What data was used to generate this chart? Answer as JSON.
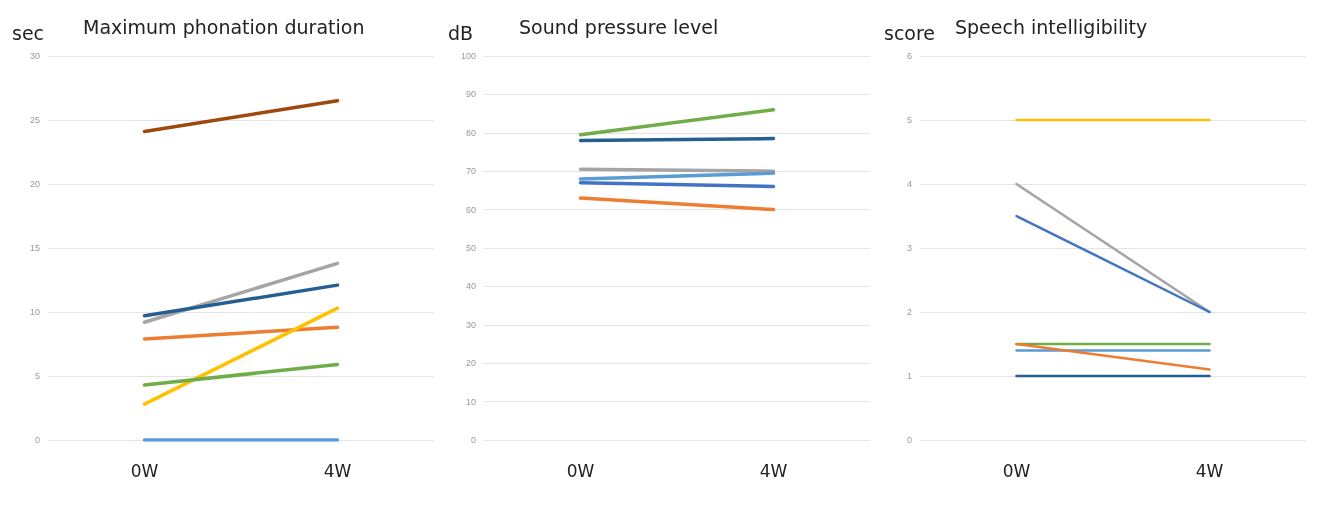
{
  "chart_data": [
    {
      "type": "line",
      "title": "Maximum phonation duration",
      "ylabel": "sec",
      "categories": [
        "0W",
        "4W"
      ],
      "ylim": [
        0,
        30
      ],
      "yticks": [
        0,
        5,
        10,
        15,
        20,
        25,
        30
      ],
      "grid": "y",
      "marker": "none",
      "series": [
        {
          "color": "#9e480e",
          "values": [
            24.1,
            26.5
          ]
        },
        {
          "color": "#a5a5a5",
          "values": [
            9.2,
            13.8
          ]
        },
        {
          "color": "#255e91",
          "values": [
            9.7,
            12.1
          ]
        },
        {
          "color": "#ed7d31",
          "values": [
            7.9,
            8.8
          ]
        },
        {
          "color": "#ffc000",
          "values": [
            2.8,
            10.3
          ]
        },
        {
          "color": "#70ad47",
          "values": [
            4.3,
            5.9
          ]
        },
        {
          "color": "#5b9bd5",
          "values": [
            0,
            0
          ]
        }
      ]
    },
    {
      "type": "line",
      "title": "Sound pressure level",
      "ylabel": "dB",
      "categories": [
        "0W",
        "4W"
      ],
      "ylim": [
        0,
        100
      ],
      "yticks": [
        0,
        10,
        20,
        30,
        40,
        50,
        60,
        70,
        80,
        90,
        100
      ],
      "grid": "y",
      "marker": "none",
      "series": [
        {
          "color": "#70ad47",
          "values": [
            79.5,
            86
          ]
        },
        {
          "color": "#255e91",
          "values": [
            78,
            78.5
          ]
        },
        {
          "color": "#a5a5a5",
          "values": [
            70.5,
            70
          ]
        },
        {
          "color": "#5b9bd5",
          "values": [
            68,
            69.5
          ]
        },
        {
          "color": "#4472c4",
          "values": [
            67,
            66
          ]
        },
        {
          "color": "#ed7d31",
          "values": [
            63,
            60
          ]
        }
      ]
    },
    {
      "type": "line",
      "title": "Speech intelligibility",
      "ylabel": "score",
      "categories": [
        "0W",
        "4W"
      ],
      "ylim": [
        0,
        6
      ],
      "yticks": [
        0,
        1,
        2,
        3,
        4,
        5,
        6
      ],
      "grid": "y",
      "marker": "none",
      "series": [
        {
          "color": "#ffc000",
          "values": [
            5,
            5
          ]
        },
        {
          "color": "#a5a5a5",
          "values": [
            4,
            2
          ]
        },
        {
          "color": "#4472c4",
          "values": [
            3.5,
            2
          ]
        },
        {
          "color": "#70ad47",
          "values": [
            1.5,
            1.5
          ]
        },
        {
          "color": "#5b9bd5",
          "values": [
            1.4,
            1.4
          ]
        },
        {
          "color": "#ed7d31",
          "values": [
            1.5,
            1.1
          ]
        },
        {
          "color": "#255e91",
          "values": [
            1,
            1
          ]
        }
      ]
    }
  ]
}
